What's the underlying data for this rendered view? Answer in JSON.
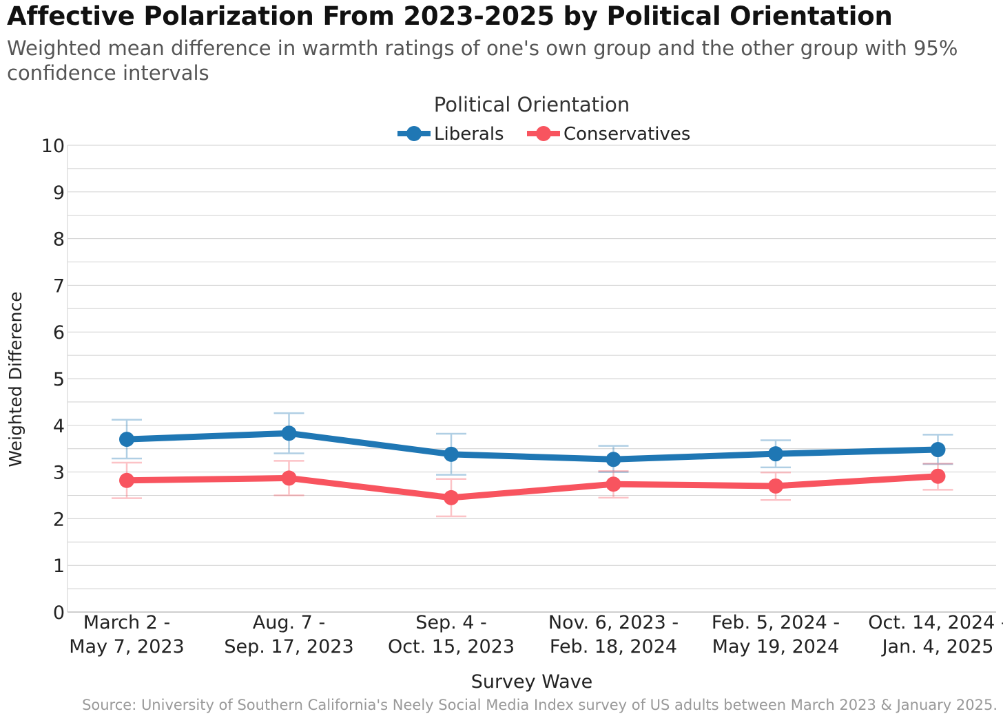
{
  "title": "Affective Polarization From 2023-2025 by Political Orientation",
  "subtitle": "Weighted mean difference in warmth ratings of one's own group and the other group with 95% confidence intervals",
  "source": "Source: University of Southern California's Neely Social Media Index survey of US adults between March 2023 & January 2025.",
  "chart_data": {
    "type": "line",
    "legend_title": "Political Orientation",
    "legend_position": "top-center",
    "xlabel": "Survey Wave",
    "ylabel": "Weighted Difference",
    "ylim": [
      0,
      10
    ],
    "yticks": [
      0,
      1,
      2,
      3,
      4,
      5,
      6,
      7,
      8,
      9,
      10
    ],
    "grid": true,
    "categories": [
      [
        "March 2 -",
        "May 7, 2023"
      ],
      [
        "Aug. 7 -",
        "Sep. 17, 2023"
      ],
      [
        "Sep. 4 -",
        "Oct. 15, 2023"
      ],
      [
        "Nov. 6, 2023 -",
        "Feb. 18, 2024"
      ],
      [
        "Feb. 5, 2024 -",
        "May 19, 2024"
      ],
      [
        "Oct. 14, 2024 -",
        "Jan. 4, 2025"
      ]
    ],
    "series": [
      {
        "name": "Liberals",
        "color": "#1f77b4",
        "values": [
          3.7,
          3.83,
          3.38,
          3.27,
          3.39,
          3.48
        ],
        "ci_low": [
          3.29,
          3.4,
          2.94,
          3.0,
          3.1,
          3.17
        ],
        "ci_high": [
          4.12,
          4.26,
          3.82,
          3.56,
          3.68,
          3.8
        ]
      },
      {
        "name": "Conservatives",
        "color": "#f8545f",
        "values": [
          2.82,
          2.87,
          2.45,
          2.74,
          2.7,
          2.91
        ],
        "ci_low": [
          2.44,
          2.5,
          2.05,
          2.45,
          2.4,
          2.62
        ],
        "ci_high": [
          3.2,
          3.24,
          2.85,
          3.02,
          2.99,
          3.18
        ]
      }
    ]
  }
}
